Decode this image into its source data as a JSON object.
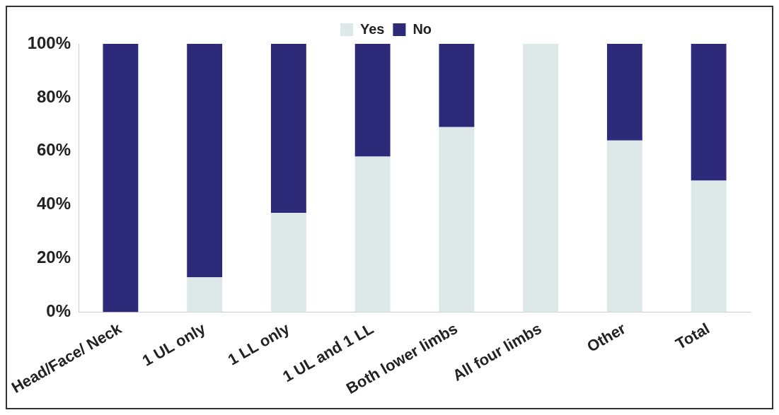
{
  "chart_data": {
    "type": "bar",
    "stacked": true,
    "categories": [
      "Head/Face/ Neck",
      "1 UL only",
      "1 LL only",
      "1 UL and 1 LL",
      "Both lower limbs",
      "All four limbs",
      "Other",
      "Total"
    ],
    "series": [
      {
        "name": "Yes",
        "color": "#dde9e9",
        "values": [
          0,
          13,
          37,
          58,
          69,
          100,
          64,
          49
        ]
      },
      {
        "name": "No",
        "color": "#2e2a7a",
        "values": [
          100,
          87,
          63,
          42,
          31,
          0,
          36,
          51
        ]
      }
    ],
    "ylim": [
      0,
      100
    ],
    "yticks": [
      {
        "value": 0,
        "label": "0%"
      },
      {
        "value": 20,
        "label": "20%"
      },
      {
        "value": 40,
        "label": "40%"
      },
      {
        "value": 60,
        "label": "60%"
      },
      {
        "value": 80,
        "label": "80%"
      },
      {
        "value": 100,
        "label": "100%"
      }
    ],
    "grid": false,
    "legend": "top"
  }
}
